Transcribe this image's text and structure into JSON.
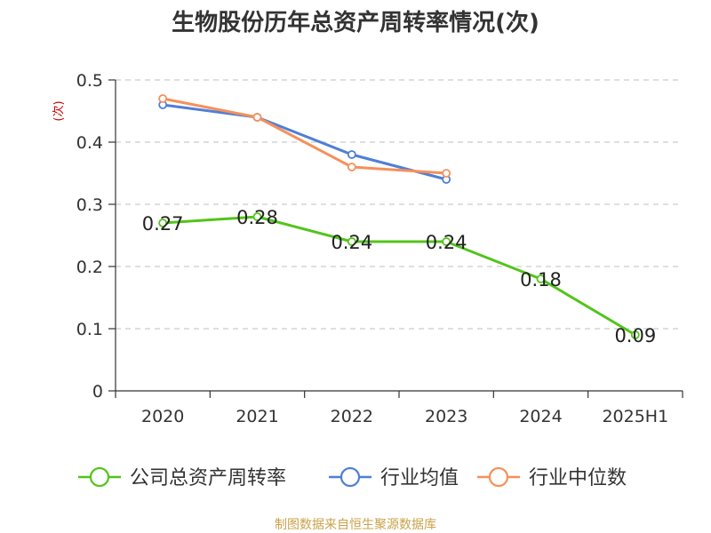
{
  "chart_data": {
    "type": "line",
    "title": "生物股份历年总资产周转率情况(次)",
    "ylabel": "(次)",
    "xlabel": "",
    "categories": [
      "2020",
      "2021",
      "2022",
      "2023",
      "2024",
      "2025H1"
    ],
    "ylim": [
      0,
      0.5
    ],
    "yticks": [
      "0",
      "0.1",
      "0.2",
      "0.3",
      "0.4",
      "0.5"
    ],
    "grid": true,
    "legend_position": "bottom",
    "series": [
      {
        "name": "公司总资产周转率",
        "color": "#52c41a",
        "values": [
          0.27,
          0.28,
          0.24,
          0.24,
          0.18,
          0.09
        ],
        "labels": [
          "0.27",
          "0.28",
          "0.24",
          "0.24",
          "0.18",
          "0.09"
        ]
      },
      {
        "name": "行业均值",
        "color": "#4e7fd6",
        "values": [
          0.46,
          0.44,
          0.38,
          0.34,
          null,
          null
        ]
      },
      {
        "name": "行业中位数",
        "color": "#f6905a",
        "values": [
          0.47,
          0.44,
          0.36,
          0.35,
          null,
          null
        ]
      }
    ],
    "source_note": "制图数据来自恒生聚源数据库"
  }
}
